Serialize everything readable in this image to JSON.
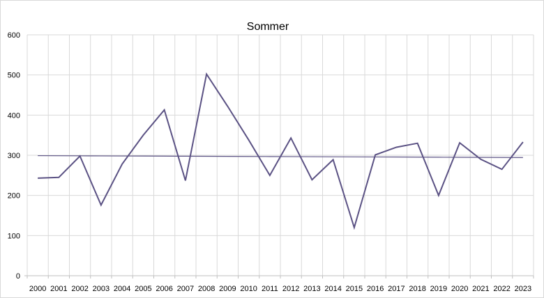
{
  "chart_data": {
    "type": "line",
    "title": "Sommer",
    "xlabel": "",
    "ylabel": "",
    "ylim": [
      0,
      600
    ],
    "yticks": [
      0,
      100,
      200,
      300,
      400,
      500,
      600
    ],
    "grid": true,
    "legend": "none",
    "categories": [
      "2000",
      "2001",
      "2002",
      "2003",
      "2004",
      "2005",
      "2006",
      "2007",
      "2008",
      "2009",
      "2010",
      "2011",
      "2012",
      "2013",
      "2014",
      "2015",
      "2016",
      "2017",
      "2018",
      "2019",
      "2020",
      "2021",
      "2022",
      "2023"
    ],
    "series": [
      {
        "values": [
          243,
          245,
          298,
          176,
          278,
          350,
          413,
          237,
          502,
          422,
          338,
          250,
          343,
          239,
          289,
          120,
          301,
          320,
          330,
          200,
          331,
          290,
          265,
          333
        ],
        "color": "#5b5284"
      },
      {
        "trend": [
          299,
          298.8,
          298.6,
          298.4,
          298.2,
          298.0,
          297.8,
          297.6,
          297.4,
          297.2,
          297.0,
          296.8,
          296.6,
          296.4,
          296.2,
          296.0,
          295.8,
          295.6,
          295.4,
          295.2,
          295.0,
          294.8,
          294.6,
          294.4
        ],
        "color": "#5b5284"
      }
    ],
    "colors": {
      "grid": "#d9d9d9",
      "axis": "#bfbfbf",
      "line": "#5b5284"
    }
  }
}
